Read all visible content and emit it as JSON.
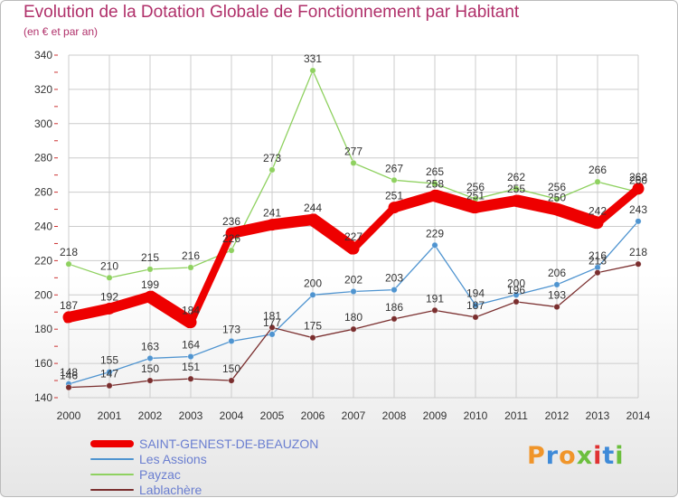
{
  "colors": {
    "title": "#b0306a",
    "axis_text": "#333333",
    "grid": "#cccccc",
    "tick_mark": "#cc3333",
    "legend_text": "#6a7ed0"
  },
  "logo": {
    "text": "Proxiti",
    "letter_colors": [
      "#f0952a",
      "#3e8ad8",
      "#f0952a",
      "#6cbf3e",
      "#e03333",
      "#3e8ad8",
      "#6cbf3e"
    ]
  },
  "chart_data": {
    "type": "line",
    "title": "Evolution de la Dotation Globale de Fonctionnement par Habitant",
    "subtitle": "(en € et par an)",
    "xlabel": "",
    "ylabel": "",
    "x": [
      "2000",
      "2001",
      "2002",
      "2003",
      "2004",
      "2005",
      "2006",
      "2007",
      "2008",
      "2009",
      "2010",
      "2011",
      "2012",
      "2013",
      "2014"
    ],
    "ylim": [
      140,
      340
    ],
    "yticks": [
      "140",
      "160",
      "180",
      "200",
      "220",
      "240",
      "260",
      "280",
      "300",
      "320",
      "340"
    ],
    "grid": true,
    "legend_position": "bottom-left",
    "series": [
      {
        "name": "Les Assions",
        "color": "#4f94d0",
        "style": "thin",
        "values": [
          148,
          155,
          163,
          164,
          173,
          177,
          200,
          202,
          203,
          229,
          194,
          200,
          206,
          216,
          243
        ],
        "labels": [
          "148",
          "155",
          "163",
          "164",
          "173",
          "177",
          "200",
          "202",
          "203",
          "229",
          "194",
          "200",
          "206",
          "216",
          "243"
        ]
      },
      {
        "name": "Payzac",
        "color": "#8fd160",
        "style": "thin",
        "values": [
          218,
          210,
          215,
          216,
          226,
          273,
          331,
          277,
          267,
          265,
          256,
          262,
          256,
          266,
          260
        ],
        "labels": [
          "218",
          "210",
          "215",
          "216",
          "226",
          "273",
          "331",
          "277",
          "267",
          "265",
          "256",
          "262",
          "256",
          "266",
          "260"
        ]
      },
      {
        "name": "Lablachère",
        "color": "#7a2e2e",
        "style": "thin",
        "values": [
          146,
          147,
          150,
          151,
          150,
          181,
          175,
          180,
          186,
          191,
          187,
          196,
          193,
          213,
          218
        ],
        "labels": [
          "146",
          "147",
          "150",
          "151",
          "150",
          "181",
          "175",
          "180",
          "186",
          "191",
          "187",
          "196",
          "193",
          "213",
          "218"
        ]
      },
      {
        "name": "SAINT-GENEST-DE-BEAUZON",
        "color": "#ee0000",
        "style": "thick",
        "values": [
          187,
          192,
          199,
          184,
          236,
          241,
          244,
          227,
          251,
          258,
          251,
          255,
          250,
          242,
          262
        ],
        "labels": [
          "187",
          "192",
          "199",
          "184",
          "236",
          "241",
          "244",
          "227",
          "251",
          "258",
          "251",
          "255",
          "250",
          "242",
          "262"
        ]
      }
    ],
    "legend": [
      {
        "name": "SAINT-GENEST-DE-BEAUZON",
        "color": "#ee0000",
        "style": "thick"
      },
      {
        "name": "Les Assions",
        "color": "#4f94d0",
        "style": "thin"
      },
      {
        "name": "Payzac",
        "color": "#8fd160",
        "style": "thin"
      },
      {
        "name": "Lablachère",
        "color": "#7a2e2e",
        "style": "thin"
      }
    ]
  }
}
